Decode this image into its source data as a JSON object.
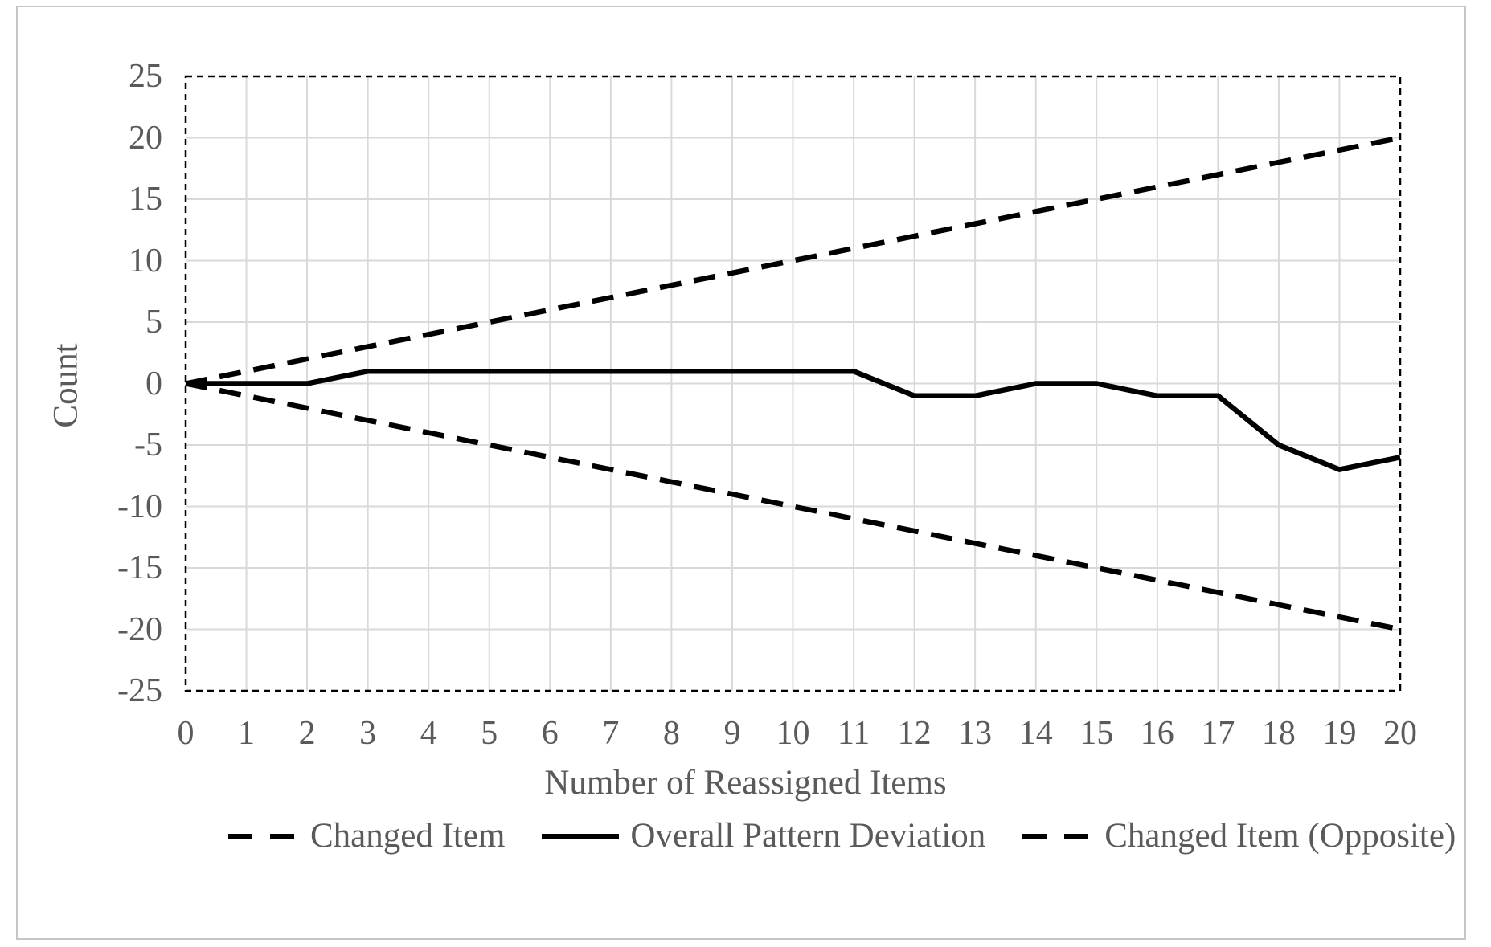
{
  "chart_data": {
    "type": "line",
    "title": "",
    "xlabel": "Number of Reassigned Items",
    "ylabel": "Count",
    "xlim": [
      0,
      20
    ],
    "ylim": [
      -25,
      25
    ],
    "xticks": [
      0,
      1,
      2,
      3,
      4,
      5,
      6,
      7,
      8,
      9,
      10,
      11,
      12,
      13,
      14,
      15,
      16,
      17,
      18,
      19,
      20
    ],
    "yticks": [
      25,
      20,
      15,
      10,
      5,
      0,
      -5,
      -10,
      -15,
      -20,
      -25
    ],
    "grid": true,
    "legend_position": "bottom",
    "x": [
      0,
      1,
      2,
      3,
      4,
      5,
      6,
      7,
      8,
      9,
      10,
      11,
      12,
      13,
      14,
      15,
      16,
      17,
      18,
      19,
      20
    ],
    "series": [
      {
        "name": "Changed Item",
        "line_style": "dashed",
        "values": [
          0,
          1,
          2,
          3,
          4,
          5,
          6,
          7,
          8,
          9,
          10,
          11,
          12,
          13,
          14,
          15,
          16,
          17,
          18,
          19,
          20
        ]
      },
      {
        "name": "Overall Pattern Deviation",
        "line_style": "solid",
        "values": [
          0,
          0,
          0,
          1,
          1,
          1,
          1,
          1,
          1,
          1,
          1,
          1,
          -1,
          -1,
          0,
          0,
          -1,
          -1,
          -5,
          -7,
          -6
        ]
      },
      {
        "name": "Changed Item (Opposite)",
        "line_style": "dashed",
        "values": [
          0,
          -1,
          -2,
          -3,
          -4,
          -5,
          -6,
          -7,
          -8,
          -9,
          -10,
          -11,
          -12,
          -13,
          -14,
          -15,
          -16,
          -17,
          -18,
          -19,
          -20
        ]
      }
    ],
    "colors": {
      "series": "#000000",
      "grid": "#d9d9d9",
      "axis_border": "#000000",
      "text": "#5a5a5a",
      "frame": "#c6c6c6"
    }
  }
}
